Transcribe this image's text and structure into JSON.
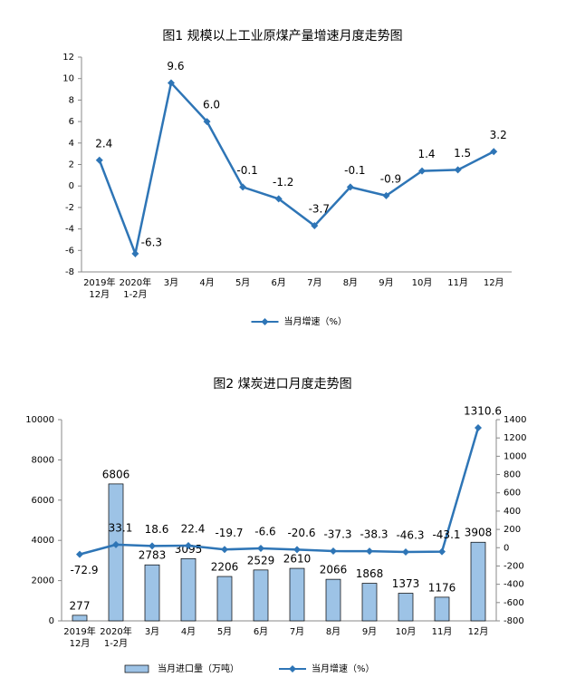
{
  "chart_data": [
    {
      "type": "line",
      "title": "图1  规模以上工业原煤产量增速月度走势图",
      "categories": [
        "2019年\n12月",
        "2020年\n1-2月",
        "3月",
        "4月",
        "5月",
        "6月",
        "7月",
        "8月",
        "9月",
        "10月",
        "11月",
        "12月"
      ],
      "series": [
        {
          "name": "当月增速（%）",
          "color": "#2e75b6",
          "values": [
            2.4,
            -6.3,
            9.6,
            6.0,
            -0.1,
            -1.2,
            -3.7,
            -0.1,
            -0.9,
            1.4,
            1.5,
            3.2
          ],
          "value_labels": [
            "2.4",
            "-6.3",
            "9.6",
            "6.0",
            "-0.1",
            "-1.2",
            "-3.7",
            "-0.1",
            "-0.9",
            "1.4",
            "1.5",
            "3.2"
          ]
        }
      ],
      "ylim": [
        -8,
        12
      ],
      "yticks": [
        -8,
        -6,
        -4,
        -2,
        0,
        2,
        4,
        6,
        8,
        10,
        12
      ],
      "grid": false,
      "legend": "bottom"
    },
    {
      "type": "bar",
      "title": "图2  煤炭进口月度走势图",
      "categories": [
        "2019年\n12月",
        "2020年\n1-2月",
        "3月",
        "4月",
        "5月",
        "6月",
        "7月",
        "8月",
        "9月",
        "10月",
        "11月",
        "12月"
      ],
      "series": [
        {
          "name": "当月进口量（万吨）",
          "type": "bar",
          "color": "#9dc3e6",
          "values": [
            277,
            6806,
            2783,
            3095,
            2206,
            2529,
            2610,
            2066,
            1868,
            1373,
            1176,
            3908
          ]
        },
        {
          "name": "当月增速（%）",
          "type": "line",
          "axis": "y2",
          "color": "#2e75b6",
          "values": [
            -72.9,
            33.1,
            18.6,
            22.4,
            -19.7,
            -6.6,
            -20.6,
            -37.3,
            -38.3,
            -46.3,
            -43.1,
            1310.6
          ]
        }
      ],
      "ylim": [
        0,
        10000
      ],
      "yticks": [
        0,
        2000,
        4000,
        6000,
        8000,
        10000
      ],
      "y2lim": [
        -800,
        1400
      ],
      "y2ticks": [
        -800,
        -600,
        -400,
        -200,
        0,
        200,
        400,
        600,
        800,
        1000,
        1200,
        1400
      ],
      "grid": false,
      "legend": "bottom"
    }
  ]
}
